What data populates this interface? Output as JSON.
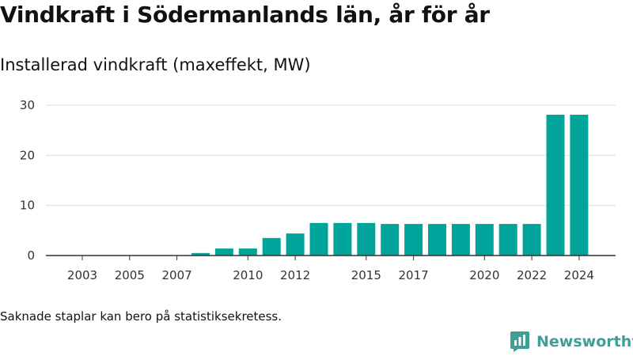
{
  "title": "Vindkraft i Södermanlands län, år för år",
  "subtitle": "Installerad vindkraft (maxeffekt, MW)",
  "footnote": "Saknade staplar kan bero på statistiksekretess.",
  "brand": {
    "name": "Newsworthy",
    "color": "#3f9e96"
  },
  "colors": {
    "bar": "#00a49a",
    "grid": "#dddddd",
    "axis": "#333333"
  },
  "chart_data": {
    "type": "bar",
    "categories": [
      2003,
      2004,
      2005,
      2006,
      2007,
      2008,
      2009,
      2010,
      2011,
      2012,
      2013,
      2014,
      2015,
      2016,
      2017,
      2018,
      2019,
      2020,
      2021,
      2022,
      2023,
      2024
    ],
    "values": [
      0,
      0,
      0,
      0,
      0,
      0.5,
      1.4,
      1.4,
      3.5,
      4.4,
      6.5,
      6.5,
      6.5,
      6.3,
      6.3,
      6.3,
      6.3,
      6.3,
      6.3,
      6.3,
      28.1,
      28.1
    ],
    "x_tick_labels": [
      "2003",
      "2005",
      "2007",
      "2010",
      "2012",
      "2015",
      "2017",
      "2020",
      "2022",
      "2024"
    ],
    "y_ticks": [
      0,
      10,
      20,
      30
    ],
    "ylim": [
      0,
      30
    ],
    "xlabel": "",
    "ylabel": "",
    "grid": true
  }
}
